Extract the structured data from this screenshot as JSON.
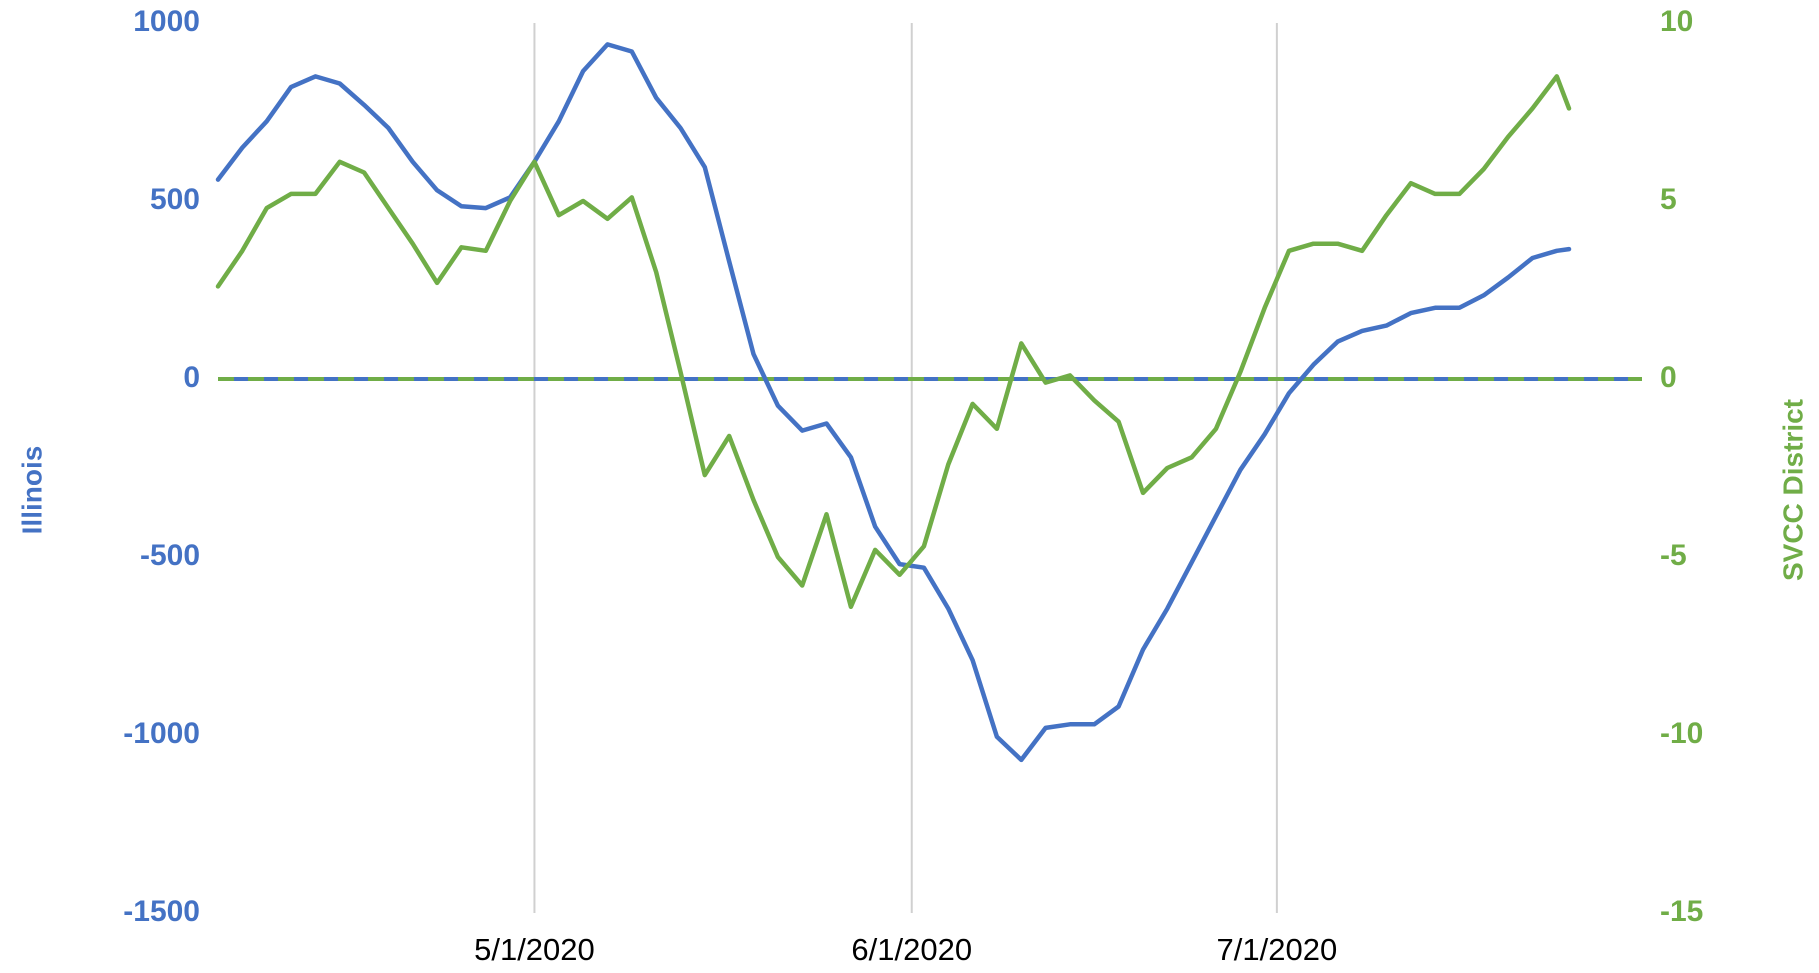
{
  "chart_data": {
    "type": "line",
    "ylabel": "Illinois",
    "y2label": "SVCC District",
    "x": [
      "4/5/2020",
      "4/7/2020",
      "4/9/2020",
      "4/11/2020",
      "4/13/2020",
      "4/15/2020",
      "4/17/2020",
      "4/19/2020",
      "4/21/2020",
      "4/23/2020",
      "4/25/2020",
      "4/27/2020",
      "4/29/2020",
      "5/1/2020",
      "5/3/2020",
      "5/5/2020",
      "5/7/2020",
      "5/9/2020",
      "5/11/2020",
      "5/13/2020",
      "5/15/2020",
      "5/17/2020",
      "5/19/2020",
      "5/21/2020",
      "5/23/2020",
      "5/25/2020",
      "5/27/2020",
      "5/29/2020",
      "5/31/2020",
      "6/2/2020",
      "6/4/2020",
      "6/6/2020",
      "6/8/2020",
      "6/10/2020",
      "6/12/2020",
      "6/14/2020",
      "6/16/2020",
      "6/18/2020",
      "6/20/2020",
      "6/22/2020",
      "6/24/2020",
      "6/26/2020",
      "6/28/2020",
      "6/30/2020",
      "7/2/2020",
      "7/4/2020",
      "7/6/2020",
      "7/8/2020",
      "7/10/2020",
      "7/12/2020",
      "7/14/2020",
      "7/16/2020",
      "7/18/2020",
      "7/20/2020",
      "7/22/2020",
      "7/24/2020",
      "7/25/2020"
    ],
    "series": [
      {
        "name": "Illinois",
        "color": "#4472c4",
        "axis": "y",
        "values": [
          560,
          650,
          724,
          820,
          850,
          830,
          770,
          705,
          610,
          530,
          485,
          480,
          510,
          610,
          724,
          865,
          940,
          920,
          790,
          705,
          595,
          330,
          70,
          -75,
          -145,
          -125,
          -220,
          -415,
          -520,
          -530,
          -645,
          -790,
          -1005,
          -1070,
          -980,
          -970,
          -970,
          -920,
          -760,
          -645,
          -515,
          -385,
          -255,
          -155,
          -40,
          40,
          105,
          135,
          150,
          185,
          200,
          200,
          235,
          285,
          340,
          360,
          365
        ]
      },
      {
        "name": "SVCC District",
        "color": "#70ad47",
        "axis": "y2",
        "values": [
          2.6,
          3.6,
          4.8,
          5.2,
          5.2,
          6.1,
          5.8,
          4.8,
          3.8,
          2.7,
          3.7,
          3.6,
          5.0,
          6.1,
          4.6,
          5.0,
          4.5,
          5.1,
          3.0,
          0.2,
          -2.7,
          -1.6,
          -3.4,
          -5.0,
          -5.8,
          -3.8,
          -6.4,
          -4.8,
          -5.5,
          -4.7,
          -2.4,
          -0.7,
          -1.4,
          1.0,
          -0.1,
          0.1,
          -0.6,
          -1.2,
          -3.2,
          -2.5,
          -2.2,
          -1.4,
          0.2,
          2.0,
          3.6,
          3.8,
          3.8,
          3.6,
          4.6,
          5.5,
          5.2,
          5.2,
          5.9,
          6.8,
          7.6,
          8.5,
          7.6
        ]
      }
    ],
    "xlim": [
      "4/5/2020",
      "7/31/2020"
    ],
    "xticks": [
      "5/1/2020",
      "6/1/2020",
      "7/1/2020"
    ],
    "ylim": [
      -1500,
      1000
    ],
    "yticks": [
      -1500,
      -1000,
      -500,
      0,
      500,
      1000
    ],
    "y2lim": [
      -15,
      10
    ],
    "y2ticks": [
      -15,
      -10,
      -5,
      0,
      5,
      10
    ],
    "grid": "x"
  }
}
